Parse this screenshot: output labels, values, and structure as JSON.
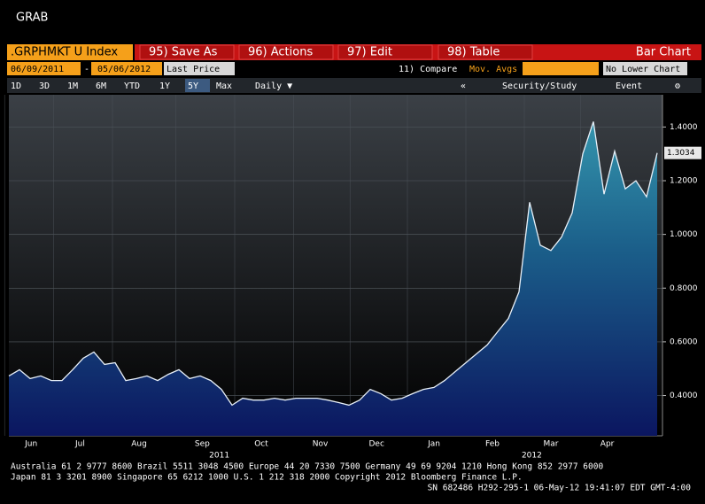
{
  "header": {
    "title": "GRAB"
  },
  "toolbar": {
    "security": ".GRPHMKT U Index",
    "buttons": [
      "95) Save As",
      "96) Actions",
      "97) Edit",
      "98) Table"
    ],
    "chart_type": "Bar Chart"
  },
  "row2": {
    "start_date": "06/09/2011",
    "separator": "-",
    "end_date": "05/06/2012",
    "field": "Last Price",
    "compare": "11) Compare",
    "mov_avgs": "Mov. Avgs",
    "lower": "No Lower Chart"
  },
  "row3": {
    "ranges": [
      "1D",
      "3D",
      "1M",
      "6M",
      "YTD",
      "1Y",
      "5Y",
      "Max"
    ],
    "period": "Daily ▼",
    "collapse": "«",
    "study": "Security/Study",
    "event": "Event",
    "settings": "⚙"
  },
  "footer": [
    "Australia 61 2 9777 8600 Brazil 5511 3048 4500 Europe 44 20 7330 7500 Germany 49 69 9204 1210 Hong Kong 852 2977 6000",
    "Japan 81 3 3201 8900          Singapore 65 6212 1000       U.S. 1 212 318 2000        Copyright 2012 Bloomberg Finance L.P.",
    "SN 682486 H292-295-1 06-May-12 19:41:07 EDT  GMT-4:00"
  ],
  "chart_data": {
    "type": "area",
    "series": [
      {
        "name": ".GRPHMKT U Index",
        "color": "#e8f0f8",
        "values": [
          0.473,
          0.496,
          0.463,
          0.473,
          0.456,
          0.456,
          0.496,
          0.539,
          0.562,
          0.516,
          0.522,
          0.456,
          0.463,
          0.473,
          0.456,
          0.479,
          0.496,
          0.463,
          0.473,
          0.456,
          0.423,
          0.364,
          0.39,
          0.383,
          0.383,
          0.39,
          0.383,
          0.39,
          0.39,
          0.39,
          0.383,
          0.374,
          0.364,
          0.383,
          0.423,
          0.407,
          0.383,
          0.39,
          0.407,
          0.423,
          0.43,
          0.456,
          0.489,
          0.522,
          0.555,
          0.588,
          0.638,
          0.687,
          0.786,
          1.12,
          0.96,
          0.94,
          0.99,
          1.08,
          1.3,
          1.42,
          1.15,
          1.31,
          1.17,
          1.2,
          1.14,
          1.3034
        ]
      }
    ],
    "last_price": {
      "value": 1.3034,
      "label": "1.3034"
    },
    "xlim": [
      0,
      61.5
    ],
    "xticks": [
      {
        "value": 2.1,
        "label": "Jun"
      },
      {
        "value": 6.7,
        "label": "Jul"
      },
      {
        "value": 12.25,
        "label": "Aug"
      },
      {
        "value": 18.2,
        "label": "Sep"
      },
      {
        "value": 23.75,
        "label": "Oct"
      },
      {
        "value": 29.3,
        "label": "Nov"
      },
      {
        "value": 34.6,
        "label": "Dec"
      },
      {
        "value": 40,
        "label": "Jan"
      },
      {
        "value": 45.5,
        "label": "Feb"
      },
      {
        "value": 51,
        "label": "Mar"
      },
      {
        "value": 56.3,
        "label": "Apr"
      }
    ],
    "year_labels": [
      {
        "value": 19.8,
        "label": "2011"
      },
      {
        "value": 49.2,
        "label": "2012"
      }
    ],
    "ylim": [
      0.25,
      1.52
    ],
    "yticks": [
      {
        "value": 0.4,
        "label": "0.4000"
      },
      {
        "value": 0.6,
        "label": "0.6000"
      },
      {
        "value": 0.8,
        "label": "0.8000"
      },
      {
        "value": 1.0,
        "label": "1.0000"
      },
      {
        "value": 1.2,
        "label": "1.2000"
      },
      {
        "value": 1.4,
        "label": "1.4000"
      }
    ],
    "grid": true
  }
}
